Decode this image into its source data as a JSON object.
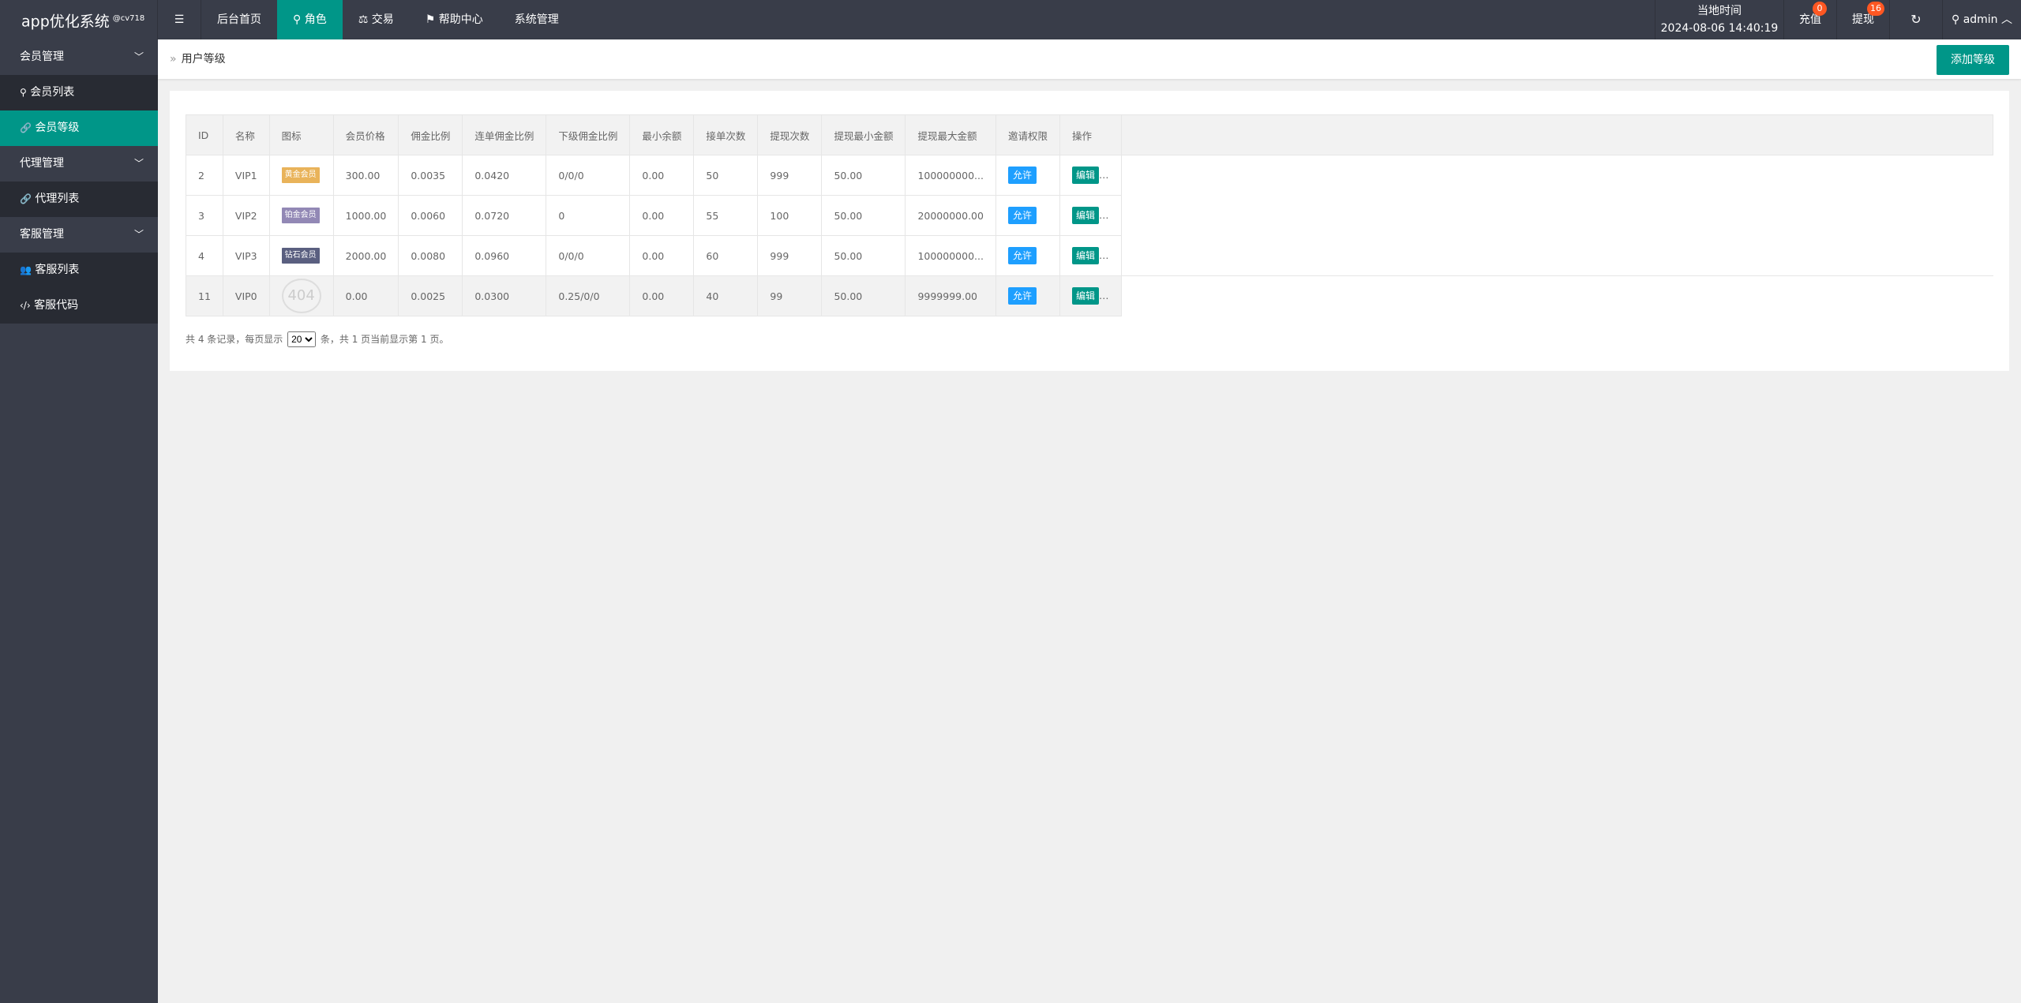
{
  "app": {
    "title": "app优化系统",
    "tag": "@cv718"
  },
  "nav": [
    {
      "label": "后台首页"
    },
    {
      "label": "角色",
      "icon": "user-icon",
      "active": true
    },
    {
      "label": "交易",
      "icon": "scale-icon"
    },
    {
      "label": "帮助中心",
      "icon": "flag-icon"
    },
    {
      "label": "系统管理"
    }
  ],
  "topright": {
    "time_label": "当地时间",
    "time": "2024-08-06 14:40:19",
    "recharge": "充值",
    "recharge_count": "0",
    "withdraw": "提现",
    "withdraw_count": "16",
    "user": "admin"
  },
  "sidebar": [
    {
      "label": "会员管理",
      "type": "group"
    },
    {
      "label": "会员列表",
      "type": "sub",
      "icon": "user-icon"
    },
    {
      "label": "会员等级",
      "type": "sub",
      "icon": "link-icon",
      "active": true
    },
    {
      "label": "代理管理",
      "type": "group"
    },
    {
      "label": "代理列表",
      "type": "sub",
      "icon": "link-icon"
    },
    {
      "label": "客服管理",
      "type": "group"
    },
    {
      "label": "客服列表",
      "type": "sub",
      "icon": "users-icon"
    },
    {
      "label": "客服代码",
      "type": "sub",
      "icon": "code-icon"
    }
  ],
  "breadcrumb": "用户等级",
  "add_button": "添加等级",
  "table": {
    "headers": [
      "ID",
      "名称",
      "图标",
      "会员价格",
      "佣金比例",
      "连单佣金比例",
      "下级佣金比例",
      "最小余额",
      "接单次数",
      "提现次数",
      "提现最小金额",
      "提现最大金额",
      "邀请权限",
      "操作"
    ],
    "rows": [
      {
        "id": "2",
        "name": "VIP1",
        "icon_label": "黄金会员",
        "icon_color": "#e9b35a",
        "price": "300.00",
        "rate": "0.0035",
        "multi": "0.0420",
        "sub": "0/0/0",
        "min": "0.00",
        "orders": "50",
        "wd_count": "999",
        "wd_min": "50.00",
        "wd_max": "100000000...",
        "invite": "允许",
        "action": "编辑"
      },
      {
        "id": "3",
        "name": "VIP2",
        "icon_label": "铂金会员",
        "icon_color": "#9288b5",
        "price": "1000.00",
        "rate": "0.0060",
        "multi": "0.0720",
        "sub": "0",
        "min": "0.00",
        "orders": "55",
        "wd_count": "100",
        "wd_min": "50.00",
        "wd_max": "20000000.00",
        "invite": "允许",
        "action": "编辑"
      },
      {
        "id": "4",
        "name": "VIP3",
        "icon_label": "钻石会员",
        "icon_color": "#5a5f80",
        "price": "2000.00",
        "rate": "0.0080",
        "multi": "0.0960",
        "sub": "0/0/0",
        "min": "0.00",
        "orders": "60",
        "wd_count": "999",
        "wd_min": "50.00",
        "wd_max": "100000000...",
        "invite": "允许",
        "action": "编辑"
      },
      {
        "id": "11",
        "name": "VIP0",
        "icon_label": "404",
        "icon_color": "",
        "price": "0.00",
        "rate": "0.0025",
        "multi": "0.0300",
        "sub": "0.25/0/0",
        "min": "0.00",
        "orders": "40",
        "wd_count": "99",
        "wd_min": "50.00",
        "wd_max": "9999999.00",
        "invite": "允许",
        "action": "编辑"
      }
    ]
  },
  "pagination": {
    "prefix": "共 4 条记录，每页显示",
    "per_page": "20",
    "suffix": "条，共 1 页当前显示第 1 页。"
  }
}
